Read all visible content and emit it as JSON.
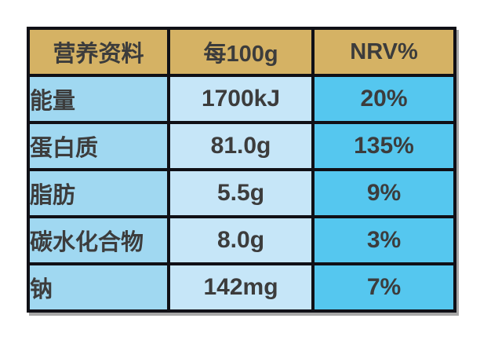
{
  "table": {
    "title_semantic": "nutrition-information-table",
    "header": {
      "col1": "营养资料",
      "col2": "每100g",
      "col3": "NRV%"
    },
    "rows": [
      {
        "label": "能量",
        "value": "1700kJ",
        "nrv": "20%"
      },
      {
        "label": "蛋白质",
        "value": "81.0g",
        "nrv": "135%"
      },
      {
        "label": "脂肪",
        "value": "5.5g",
        "nrv": "9%"
      },
      {
        "label": "碳水化合物",
        "value": "8.0g",
        "nrv": "3%"
      },
      {
        "label": "钠",
        "value": "142mg",
        "nrv": "7%"
      }
    ],
    "colors": {
      "header_bg": "#d5b264",
      "label_column_bg": "#a0d8f1",
      "value_column_bg": "#c6e6f8",
      "nrv_column_bg": "#55c7ef",
      "border": "#101016",
      "text": "#3c3c3c",
      "page_bg": "#ffffff"
    }
  }
}
